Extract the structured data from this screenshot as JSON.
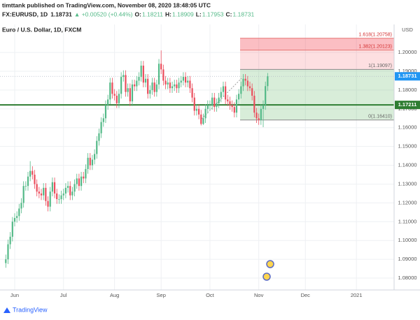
{
  "header": {
    "publisher": "timttank published on TradingView.com, November 08, 2020 18:48:05 UTC",
    "symbol": "FX:EURUSD, 1D",
    "change": "▲ +0.00520 (+0.44%)",
    "o_label": "O:",
    "h_label": "H:",
    "l_label": "L:",
    "c_label": "C:"
  },
  "footer": "TradingView",
  "chart_data": {
    "type": "candlestick",
    "title": "Euro / U.S. Dollar, 1D, FXCM",
    "currency": "USD",
    "up_color": "#53b987",
    "down_color": "#eb4d5c",
    "ylim": [
      1.0737,
      1.2149
    ],
    "yticks": [
      {
        "value": 1.08,
        "label": "1.08000"
      },
      {
        "value": 1.09,
        "label": "1.09000"
      },
      {
        "value": 1.1,
        "label": "1.10000"
      },
      {
        "value": 1.11,
        "label": "1.11000"
      },
      {
        "value": 1.12,
        "label": "1.12000"
      },
      {
        "value": 1.13,
        "label": "1.13000"
      },
      {
        "value": 1.14,
        "label": "1.14000"
      },
      {
        "value": 1.15,
        "label": "1.15000"
      },
      {
        "value": 1.16,
        "label": "1.16000"
      },
      {
        "value": 1.17,
        "label": "1.17000"
      },
      {
        "value": 1.18,
        "label": "1.18000"
      },
      {
        "value": 1.19,
        "label": "1.19000"
      },
      {
        "value": 1.2,
        "label": "1.20000"
      }
    ],
    "grid": true,
    "hline": {
      "value": 1.17211,
      "color": "#2e7d32"
    },
    "fib_levels": [
      {
        "value": 1.1641,
        "label": "0(1.16410)"
      },
      {
        "value": 1.19097,
        "label": "1(1.19097)"
      },
      {
        "value": 1.20123,
        "label": "1.382(1.20123)"
      },
      {
        "value": 1.20758,
        "label": "1.618(1.20758)"
      }
    ],
    "fib_colors": [
      "rgba(76,175,80,0.22)",
      "rgba(242,54,69,0.16)",
      "rgba(242,54,69,0.32)"
    ],
    "categories": [
      null,
      null,
      null,
      null,
      "Jun",
      null,
      null,
      null,
      null,
      null,
      null,
      null,
      null,
      null,
      null,
      null,
      null,
      null,
      null,
      null,
      null,
      null,
      null,
      null,
      null,
      null,
      "Jul",
      null,
      null,
      null,
      null,
      null,
      null,
      null,
      null,
      null,
      null,
      null,
      null,
      null,
      null,
      null,
      null,
      null,
      null,
      null,
      null,
      null,
      null,
      "Aug",
      null,
      null,
      null,
      null,
      null,
      null,
      null,
      null,
      null,
      null,
      null,
      null,
      null,
      null,
      null,
      null,
      null,
      null,
      null,
      null,
      "Sep",
      null,
      null,
      null,
      null,
      null,
      null,
      null,
      null,
      null,
      null,
      null,
      null,
      null,
      null,
      null,
      null,
      null,
      null,
      null,
      null,
      null,
      "Oct",
      null,
      null,
      null,
      null,
      null,
      null,
      null,
      null,
      null,
      null,
      null,
      null,
      null,
      null,
      null,
      null,
      null,
      null,
      null,
      null,
      null,
      "Nov",
      null,
      null,
      null,
      null,
      null,
      null,
      null,
      null,
      null,
      null,
      null,
      null,
      null,
      null,
      null,
      null,
      null,
      null,
      null,
      null,
      "Dec",
      null,
      null,
      null,
      null,
      null,
      null,
      null,
      null,
      null,
      null,
      null,
      null,
      null,
      null,
      null,
      null,
      null,
      null,
      null,
      null,
      null,
      null,
      "2021"
    ],
    "open": [
      1.088,
      1.09,
      1.098,
      1.102,
      1.11,
      1.112,
      1.113,
      1.117,
      1.12,
      1.129,
      1.129,
      1.134,
      1.137,
      1.135,
      1.13,
      1.126,
      1.125,
      1.124,
      1.128,
      1.121,
      1.118,
      1.126,
      1.131,
      1.125,
      1.122,
      1.122,
      1.124,
      1.125,
      1.128,
      1.129,
      1.124,
      1.126,
      1.13,
      1.133,
      1.129,
      1.134,
      1.133,
      1.138,
      1.144,
      1.14,
      1.143,
      1.146,
      1.153,
      1.157,
      1.163,
      1.165,
      1.172,
      1.175,
      1.184,
      1.178,
      1.177,
      1.173,
      1.178,
      1.187,
      1.188,
      1.179,
      1.181,
      1.174,
      1.183,
      1.182,
      1.185,
      1.187,
      1.193,
      1.184,
      1.186,
      1.178,
      1.18,
      1.184,
      1.179,
      1.183,
      1.194,
      1.191,
      1.185,
      1.183,
      1.184,
      1.181,
      1.182,
      1.183,
      1.181,
      1.184,
      1.185,
      1.187,
      1.184,
      1.185,
      1.181,
      1.176,
      1.169,
      1.17,
      1.167,
      1.162,
      1.165,
      1.17,
      1.172,
      1.172,
      1.176,
      1.171,
      1.173,
      1.176,
      1.179,
      1.182,
      1.175,
      1.174,
      1.172,
      1.171,
      1.168,
      1.175,
      1.178,
      1.182,
      1.186,
      1.185,
      1.182,
      1.181,
      1.177,
      1.168,
      1.165,
      1.164,
      1.17,
      1.172,
      1.18211,
      null,
      null,
      null,
      null,
      null,
      null,
      null,
      null,
      null,
      null,
      null,
      null,
      null,
      null,
      null,
      null,
      null,
      null,
      null,
      null,
      null,
      null,
      null,
      null,
      null,
      null,
      null,
      null,
      null,
      null,
      null,
      null,
      null,
      null,
      null,
      null,
      null,
      null,
      null,
      null
    ],
    "high": [
      1.0925,
      1.1005,
      1.1045,
      1.1125,
      1.1145,
      1.1155,
      1.1195,
      1.1225,
      1.1315,
      1.1315,
      1.1365,
      1.1422,
      1.1395,
      1.1375,
      1.1325,
      1.1285,
      1.1275,
      1.1305,
      1.1305,
      1.1235,
      1.1285,
      1.1335,
      1.1335,
      1.1275,
      1.1245,
      1.1265,
      1.1275,
      1.1305,
      1.1315,
      1.1315,
      1.1285,
      1.1325,
      1.1355,
      1.1355,
      1.1365,
      1.1365,
      1.1405,
      1.1465,
      1.1465,
      1.1455,
      1.1485,
      1.1555,
      1.1595,
      1.1655,
      1.1675,
      1.1745,
      1.1775,
      1.1865,
      1.1865,
      1.1805,
      1.1795,
      1.1805,
      1.1895,
      1.1905,
      1.1905,
      1.1835,
      1.1835,
      1.1855,
      1.1855,
      1.1875,
      1.1895,
      1.1955,
      1.1955,
      1.1885,
      1.1885,
      1.1825,
      1.1865,
      1.1865,
      1.1855,
      1.1965,
      1.2011,
      1.1935,
      1.1875,
      1.1865,
      1.1865,
      1.1845,
      1.1855,
      1.1855,
      1.1865,
      1.1875,
      1.1895,
      1.1895,
      1.1875,
      1.1875,
      1.1835,
      1.1785,
      1.1725,
      1.1725,
      1.1695,
      1.1675,
      1.1725,
      1.1745,
      1.1745,
      1.1785,
      1.1785,
      1.1755,
      1.1785,
      1.1815,
      1.1845,
      1.1845,
      1.1775,
      1.1765,
      1.1745,
      1.1735,
      1.1775,
      1.1805,
      1.1845,
      1.1885,
      1.1885,
      1.1875,
      1.1845,
      1.1835,
      1.1795,
      1.1705,
      1.1675,
      1.1725,
      1.1745,
      1.1845,
      1.18909,
      null,
      null,
      null,
      null,
      null,
      null,
      null,
      null,
      null,
      null,
      null,
      null,
      null,
      null,
      null,
      null,
      null,
      null,
      null,
      null,
      null,
      null,
      null,
      null,
      null,
      null,
      null,
      null,
      null,
      null,
      null,
      null,
      null,
      null,
      null,
      null,
      null,
      null,
      null,
      null
    ],
    "low": [
      1.0855,
      1.0875,
      1.0955,
      1.0995,
      1.1075,
      1.1095,
      1.1105,
      1.1145,
      1.1175,
      1.1265,
      1.1265,
      1.1315,
      1.1325,
      1.1275,
      1.1235,
      1.1225,
      1.1215,
      1.1215,
      1.1185,
      1.1155,
      1.1155,
      1.1235,
      1.1225,
      1.1195,
      1.1195,
      1.1195,
      1.1215,
      1.1225,
      1.1255,
      1.1215,
      1.1215,
      1.1235,
      1.1275,
      1.1265,
      1.1265,
      1.1305,
      1.1305,
      1.1355,
      1.1375,
      1.1375,
      1.1405,
      1.1435,
      1.1505,
      1.1545,
      1.1605,
      1.1625,
      1.1695,
      1.1725,
      1.1755,
      1.1745,
      1.1705,
      1.1705,
      1.1755,
      1.1845,
      1.1765,
      1.1765,
      1.1715,
      1.1715,
      1.1795,
      1.1795,
      1.1825,
      1.1845,
      1.1815,
      1.1815,
      1.1755,
      1.1755,
      1.1775,
      1.1765,
      1.1765,
      1.1805,
      1.1885,
      1.1825,
      1.1805,
      1.1805,
      1.1785,
      1.1785,
      1.1795,
      1.1785,
      1.1785,
      1.1815,
      1.1825,
      1.1815,
      1.1815,
      1.1785,
      1.1735,
      1.1665,
      1.1665,
      1.1645,
      1.1612,
      1.1615,
      1.1625,
      1.1675,
      1.1695,
      1.1695,
      1.1685,
      1.1685,
      1.1705,
      1.1735,
      1.1765,
      1.1725,
      1.1715,
      1.1695,
      1.1685,
      1.1655,
      1.1655,
      1.1725,
      1.1755,
      1.1795,
      1.1825,
      1.1795,
      1.1795,
      1.1745,
      1.1655,
      1.1625,
      1.1615,
      1.1615,
      1.1603,
      1.1695,
      1.17953,
      null,
      null,
      null,
      null,
      null,
      null,
      null,
      null,
      null,
      null,
      null,
      null,
      null,
      null,
      null,
      null,
      null,
      null,
      null,
      null,
      null,
      null,
      null,
      null,
      null,
      null,
      null,
      null,
      null,
      null,
      null,
      null,
      null,
      null,
      null,
      null,
      null,
      null,
      null,
      null
    ],
    "close": [
      1.09,
      1.098,
      1.102,
      1.11,
      1.112,
      1.113,
      1.117,
      1.12,
      1.129,
      1.129,
      1.134,
      1.137,
      1.135,
      1.13,
      1.126,
      1.125,
      1.124,
      1.128,
      1.121,
      1.118,
      1.126,
      1.131,
      1.125,
      1.122,
      1.122,
      1.124,
      1.125,
      1.128,
      1.129,
      1.124,
      1.126,
      1.13,
      1.133,
      1.129,
      1.134,
      1.133,
      1.138,
      1.144,
      1.14,
      1.143,
      1.146,
      1.153,
      1.157,
      1.163,
      1.165,
      1.172,
      1.175,
      1.184,
      1.178,
      1.177,
      1.173,
      1.178,
      1.187,
      1.188,
      1.179,
      1.181,
      1.174,
      1.183,
      1.182,
      1.185,
      1.187,
      1.193,
      1.184,
      1.186,
      1.178,
      1.18,
      1.184,
      1.179,
      1.183,
      1.194,
      1.191,
      1.185,
      1.183,
      1.184,
      1.181,
      1.182,
      1.183,
      1.181,
      1.184,
      1.185,
      1.187,
      1.184,
      1.185,
      1.181,
      1.176,
      1.169,
      1.17,
      1.167,
      1.162,
      1.165,
      1.17,
      1.172,
      1.172,
      1.176,
      1.171,
      1.173,
      1.176,
      1.179,
      1.182,
      1.175,
      1.174,
      1.172,
      1.171,
      1.168,
      1.175,
      1.178,
      1.182,
      1.186,
      1.185,
      1.182,
      1.181,
      1.177,
      1.168,
      1.165,
      1.164,
      1.17,
      1.172,
      1.1821,
      1.18731,
      null,
      null,
      null,
      null,
      null,
      null,
      null,
      null,
      null,
      null,
      null,
      null,
      null,
      null,
      null,
      null,
      null,
      null,
      null,
      null,
      null,
      null,
      null,
      null,
      null,
      null,
      null,
      null,
      null,
      null,
      null,
      null,
      null,
      null,
      null,
      null,
      null,
      null,
      null,
      null
    ]
  }
}
